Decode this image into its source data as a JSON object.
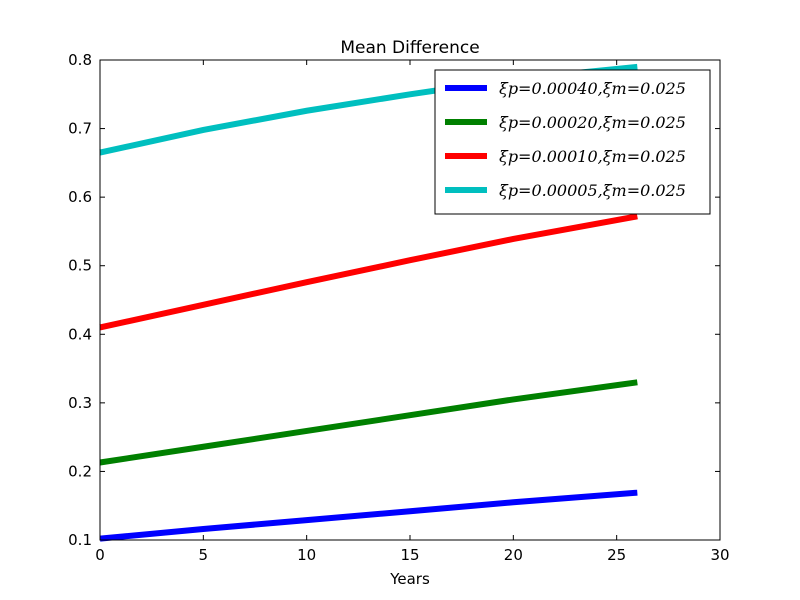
{
  "chart_data": {
    "type": "line",
    "title": "Mean Difference",
    "xlabel": "Years",
    "ylabel": "",
    "xlim": [
      0,
      30
    ],
    "ylim": [
      0.1,
      0.8
    ],
    "xticks": [
      "0",
      "5",
      "10",
      "15",
      "20",
      "25",
      "30"
    ],
    "yticks": [
      "0.1",
      "0.2",
      "0.3",
      "0.4",
      "0.5",
      "0.6",
      "0.7",
      "0.8"
    ],
    "grid": false,
    "legend_position": "top-right",
    "x": [
      0,
      5,
      10,
      15,
      20,
      26
    ],
    "series": [
      {
        "name": "ξp=0.00040,ξm=0.025",
        "color": "#0000ff",
        "values": [
          0.102,
          0.116,
          0.129,
          0.142,
          0.155,
          0.169
        ]
      },
      {
        "name": "ξp=0.00020,ξm=0.025",
        "color": "#008000",
        "values": [
          0.213,
          0.236,
          0.259,
          0.282,
          0.305,
          0.33
        ]
      },
      {
        "name": "ξp=0.00010,ξm=0.025",
        "color": "#ff0000",
        "values": [
          0.41,
          0.443,
          0.476,
          0.508,
          0.539,
          0.572
        ]
      },
      {
        "name": "ξp=0.00005,ξm=0.025",
        "color": "#00bfbf",
        "values": [
          0.665,
          0.698,
          0.726,
          0.75,
          0.772,
          0.79
        ]
      }
    ]
  }
}
